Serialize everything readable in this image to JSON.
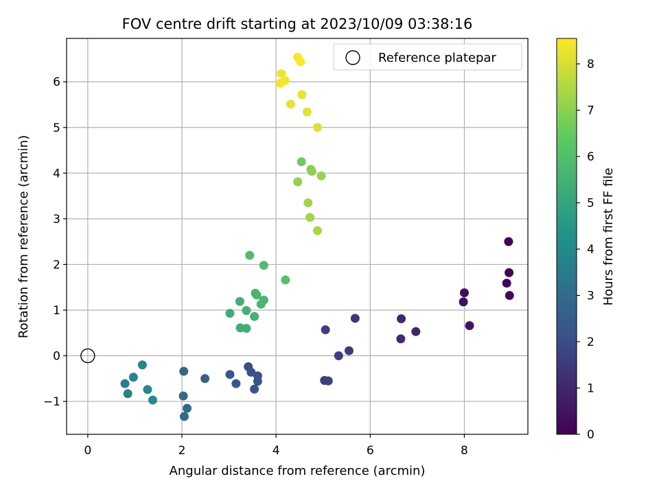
{
  "chart_data": {
    "type": "scatter",
    "title": "FOV centre drift starting at 2023/10/09 03:38:16",
    "xlabel": "Angular distance from reference (arcmin)",
    "ylabel": "Rotation from reference (arcmin)",
    "xlim": [
      -0.45,
      9.35
    ],
    "ylim": [
      -1.72,
      6.95
    ],
    "x_ticks": [
      0,
      2,
      4,
      6,
      8
    ],
    "x_tick_labels": [
      "0",
      "2",
      "4",
      "6",
      "8"
    ],
    "y_ticks": [
      -1,
      0,
      1,
      2,
      3,
      4,
      5,
      6
    ],
    "y_tick_labels": [
      "−1",
      "0",
      "1",
      "2",
      "3",
      "4",
      "5",
      "6"
    ],
    "grid": true,
    "legend": {
      "position": "top-right",
      "entries": [
        "Reference platepar"
      ]
    },
    "reference_point": {
      "x": 0,
      "y": 0,
      "label": "Reference platepar"
    },
    "colormap": "viridis",
    "colorbar": {
      "label": "Hours from first FF file",
      "min": 0,
      "max": 8.55,
      "ticks": [
        0,
        1,
        2,
        3,
        4,
        5,
        6,
        7,
        8
      ],
      "tick_labels": [
        "0",
        "1",
        "2",
        "3",
        "4",
        "5",
        "6",
        "7",
        "8"
      ]
    },
    "points": [
      {
        "x": 8.94,
        "y": 2.5,
        "hours": 0.0
      },
      {
        "x": 8.95,
        "y": 1.82,
        "hours": 0.1
      },
      {
        "x": 8.9,
        "y": 1.59,
        "hours": 0.15
      },
      {
        "x": 8.96,
        "y": 1.32,
        "hours": 0.2
      },
      {
        "x": 8.0,
        "y": 1.38,
        "hours": 0.35
      },
      {
        "x": 7.98,
        "y": 1.18,
        "hours": 0.4
      },
      {
        "x": 8.11,
        "y": 0.66,
        "hours": 0.45
      },
      {
        "x": 6.66,
        "y": 0.81,
        "hours": 1.0
      },
      {
        "x": 6.97,
        "y": 0.53,
        "hours": 0.95
      },
      {
        "x": 6.65,
        "y": 0.37,
        "hours": 1.05
      },
      {
        "x": 5.68,
        "y": 0.82,
        "hours": 1.4
      },
      {
        "x": 5.55,
        "y": 0.11,
        "hours": 1.5
      },
      {
        "x": 5.33,
        "y": 0.0,
        "hours": 1.6
      },
      {
        "x": 5.05,
        "y": 0.57,
        "hours": 1.7
      },
      {
        "x": 5.03,
        "y": -0.54,
        "hours": 1.65
      },
      {
        "x": 5.11,
        "y": -0.55,
        "hours": 1.7
      },
      {
        "x": 3.41,
        "y": -0.24,
        "hours": 2.0
      },
      {
        "x": 3.47,
        "y": -0.36,
        "hours": 2.05
      },
      {
        "x": 3.61,
        "y": -0.44,
        "hours": 2.1
      },
      {
        "x": 3.61,
        "y": -0.56,
        "hours": 2.15
      },
      {
        "x": 3.54,
        "y": -0.73,
        "hours": 2.2
      },
      {
        "x": 3.02,
        "y": -0.41,
        "hours": 2.3
      },
      {
        "x": 3.15,
        "y": -0.61,
        "hours": 2.35
      },
      {
        "x": 2.49,
        "y": -0.5,
        "hours": 2.5
      },
      {
        "x": 2.04,
        "y": -0.34,
        "hours": 2.8
      },
      {
        "x": 2.03,
        "y": -0.88,
        "hours": 2.9
      },
      {
        "x": 2.11,
        "y": -1.15,
        "hours": 3.0
      },
      {
        "x": 2.05,
        "y": -1.33,
        "hours": 3.05
      },
      {
        "x": 1.16,
        "y": -0.2,
        "hours": 3.9
      },
      {
        "x": 0.97,
        "y": -0.47,
        "hours": 3.8
      },
      {
        "x": 0.79,
        "y": -0.61,
        "hours": 3.6
      },
      {
        "x": 0.85,
        "y": -0.83,
        "hours": 3.7
      },
      {
        "x": 1.27,
        "y": -0.74,
        "hours": 4.0
      },
      {
        "x": 1.38,
        "y": -0.97,
        "hours": 4.05
      },
      {
        "x": 3.02,
        "y": 0.93,
        "hours": 5.3
      },
      {
        "x": 3.23,
        "y": 1.19,
        "hours": 5.4
      },
      {
        "x": 3.37,
        "y": 0.99,
        "hours": 5.45
      },
      {
        "x": 3.24,
        "y": 0.61,
        "hours": 5.35
      },
      {
        "x": 3.37,
        "y": 0.6,
        "hours": 5.4
      },
      {
        "x": 3.54,
        "y": 0.86,
        "hours": 5.5
      },
      {
        "x": 3.56,
        "y": 1.37,
        "hours": 5.6
      },
      {
        "x": 3.59,
        "y": 1.33,
        "hours": 5.65
      },
      {
        "x": 3.68,
        "y": 1.13,
        "hours": 5.6
      },
      {
        "x": 3.74,
        "y": 1.22,
        "hours": 5.7
      },
      {
        "x": 3.44,
        "y": 2.2,
        "hours": 5.9
      },
      {
        "x": 3.74,
        "y": 1.98,
        "hours": 5.95
      },
      {
        "x": 4.2,
        "y": 1.66,
        "hours": 6.1
      },
      {
        "x": 4.54,
        "y": 4.25,
        "hours": 6.6
      },
      {
        "x": 4.74,
        "y": 4.08,
        "hours": 6.9
      },
      {
        "x": 4.76,
        "y": 4.04,
        "hours": 7.0
      },
      {
        "x": 4.96,
        "y": 3.94,
        "hours": 7.2
      },
      {
        "x": 4.46,
        "y": 3.81,
        "hours": 7.1
      },
      {
        "x": 4.68,
        "y": 3.35,
        "hours": 7.3
      },
      {
        "x": 4.72,
        "y": 3.03,
        "hours": 7.35
      },
      {
        "x": 4.88,
        "y": 2.74,
        "hours": 7.4
      },
      {
        "x": 4.88,
        "y": 5.0,
        "hours": 8.1
      },
      {
        "x": 4.66,
        "y": 5.34,
        "hours": 8.2
      },
      {
        "x": 4.31,
        "y": 5.51,
        "hours": 8.25
      },
      {
        "x": 4.55,
        "y": 5.72,
        "hours": 8.3
      },
      {
        "x": 4.11,
        "y": 6.18,
        "hours": 8.4
      },
      {
        "x": 4.09,
        "y": 5.97,
        "hours": 8.4
      },
      {
        "x": 4.19,
        "y": 6.03,
        "hours": 8.45
      },
      {
        "x": 4.46,
        "y": 6.54,
        "hours": 8.5
      },
      {
        "x": 4.52,
        "y": 6.44,
        "hours": 8.55
      }
    ]
  }
}
